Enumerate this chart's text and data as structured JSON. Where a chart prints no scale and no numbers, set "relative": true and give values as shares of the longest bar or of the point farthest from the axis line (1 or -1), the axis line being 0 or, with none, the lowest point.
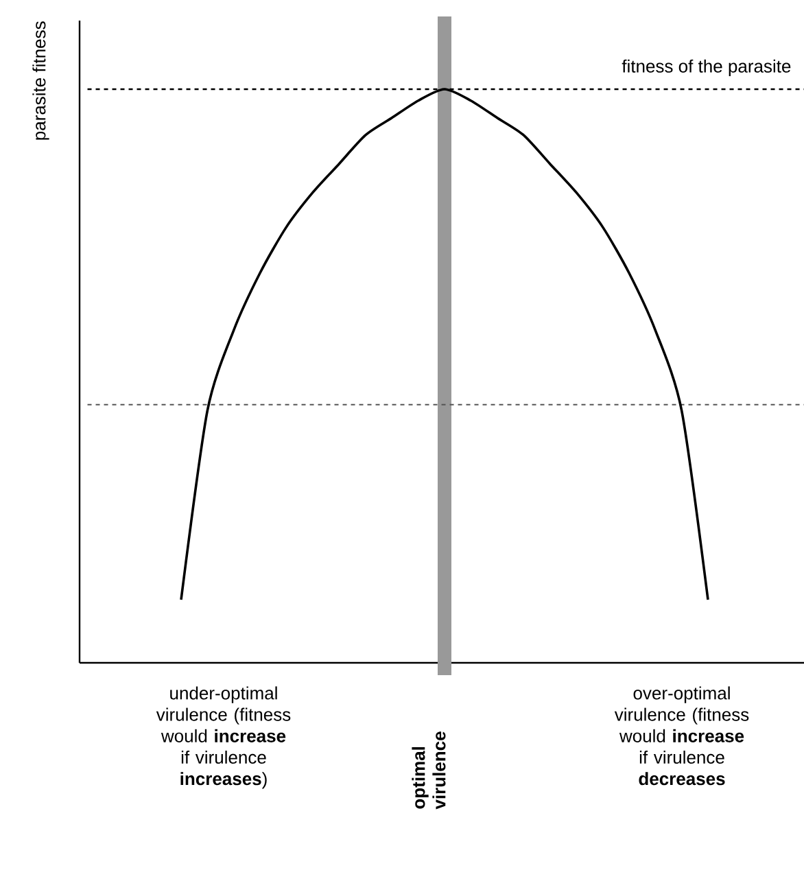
{
  "chart_data": {
    "type": "line",
    "relative": true,
    "categories": [
      null,
      null,
      null,
      null,
      null,
      null,
      null,
      null,
      null,
      null,
      null,
      null,
      null,
      null,
      null,
      null,
      null,
      null,
      null,
      null,
      null
    ],
    "series": [
      {
        "color": "#000000",
        "values": [
          0.11,
          0.44,
          0.58,
          0.68,
          0.76,
          0.82,
          0.87,
          0.92,
          0.95,
          0.98,
          1.0,
          0.98,
          0.95,
          0.92,
          0.87,
          0.82,
          0.76,
          0.68,
          0.58,
          0.44,
          0.11
        ]
      }
    ],
    "line_style": "solid",
    "marker": "none",
    "ref_lines": [
      {
        "axis": "y",
        "value": 1,
        "label": "fitness of the parasite",
        "color": "#000000",
        "line_style": "dashed"
      },
      {
        "axis": "y",
        "value": 0.45,
        "color": "#555555",
        "line_style": "dashed"
      }
    ],
    "annotations": [
      "parasite fitness",
      "under-optimal virulence (fitness would **increase** if virulence **increases**)",
      "optimal virulence",
      "over-optimal virulence (fitness would **increase** if virulence **decreases**"
    ]
  }
}
